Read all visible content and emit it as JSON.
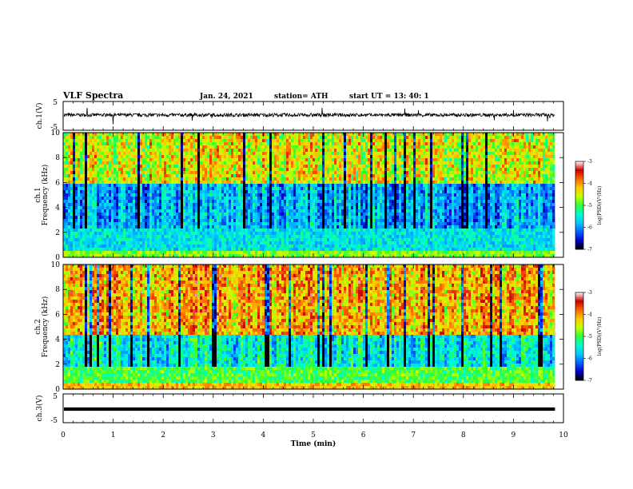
{
  "header": {
    "title": "VLF Spectra",
    "date": "Jan. 24, 2021",
    "station": "station= ATH",
    "start": "start  UT =   13: 40: 1"
  },
  "chart_data": [
    {
      "type": "line",
      "panel": "ch1_waveform",
      "ylabel": "ch.1(V)",
      "ylim": [
        -5,
        5
      ],
      "yticks": [
        "5",
        "-5"
      ],
      "x_range": [
        0,
        9.83
      ],
      "baseline_v": 0.3,
      "noise_amplitude_v": 1.2,
      "color": "#000000"
    },
    {
      "type": "heatmap",
      "panel": "ch1_spectrogram",
      "ylabel": "ch.1\nFrequency (kHz)",
      "ylim": [
        0,
        10
      ],
      "yticks": [
        "0",
        "2",
        "4",
        "6",
        "8",
        "10"
      ],
      "x_range": [
        0,
        9.83
      ],
      "colorbar": {
        "label": "log(PSD)(V²/Hz)",
        "range": [
          -7,
          -3
        ],
        "ticks": [
          "-3",
          "-4",
          "-5",
          "-6",
          "-7"
        ],
        "colors": [
          "#000000",
          "#0000c8",
          "#0064ff",
          "#00c8ff",
          "#00ffc8",
          "#32ff32",
          "#c8ff00",
          "#ffc800",
          "#ff6400",
          "#c80000",
          "#ffffff"
        ]
      },
      "low_band_kHz": [
        0,
        2.5
      ],
      "low_band_level": -5.6,
      "high_band_level": -4.5,
      "quiet_band_kHz": [
        2.5,
        6.0
      ],
      "quiet_band_level": -6.4
    },
    {
      "type": "heatmap",
      "panel": "ch2_spectrogram",
      "ylabel": "ch.2\nFrequency (kHz)",
      "ylim": [
        0,
        10
      ],
      "yticks": [
        "0",
        "2",
        "4",
        "6",
        "8",
        "10"
      ],
      "x_range": [
        0,
        9.83
      ],
      "colorbar": {
        "label": "log(PSD)(V²/Hz)",
        "range": [
          -7,
          -3
        ],
        "ticks": [
          "-3",
          "-4",
          "-5",
          "-6",
          "-7"
        ]
      },
      "low_band_kHz": [
        0,
        2.0
      ],
      "low_band_level": -5.0,
      "high_band_level": -4.1,
      "quiet_band_kHz": [
        2.0,
        4.5
      ],
      "quiet_band_level": -6.0
    },
    {
      "type": "line",
      "panel": "ch3_waveform",
      "ylabel": "ch.3(V)",
      "ylim": [
        -5,
        5
      ],
      "yticks": [
        "5",
        "-5"
      ],
      "x_range": [
        0,
        9.83
      ],
      "baseline_v": 0.0,
      "band_halfwidth_v": 0.3,
      "color": "#000000"
    }
  ],
  "x_axis": {
    "label": "Time (min)",
    "range": [
      0,
      10
    ],
    "ticks": [
      "0",
      "1",
      "2",
      "3",
      "4",
      "5",
      "6",
      "7",
      "8",
      "9",
      "10"
    ]
  }
}
